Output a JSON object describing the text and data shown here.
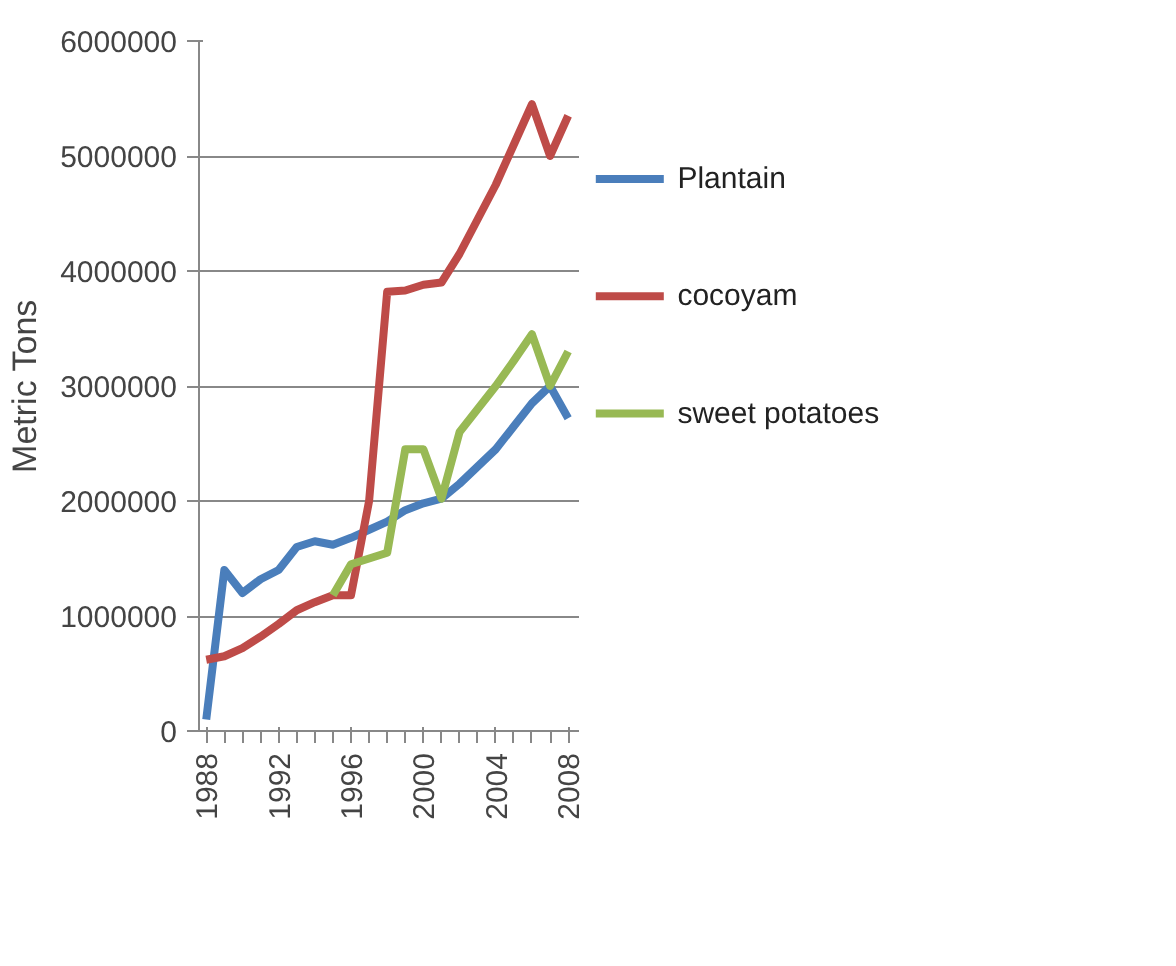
{
  "chart_data": {
    "type": "line",
    "ylabel": "Metric Tons",
    "x": [
      1988,
      1989,
      1990,
      1991,
      1992,
      1993,
      1994,
      1995,
      1996,
      1997,
      1998,
      1999,
      2000,
      2001,
      2002,
      2003,
      2004,
      2005,
      2006,
      2007,
      2008
    ],
    "xlim": [
      1987.6,
      2008.6
    ],
    "xticks": [
      1988,
      1992,
      1996,
      2000,
      2004,
      2008
    ],
    "ylim": [
      0,
      6000000
    ],
    "yticks": [
      0,
      1000000,
      2000000,
      3000000,
      4000000,
      5000000,
      6000000
    ],
    "grid": "y",
    "legend": "right",
    "line_style": "solid",
    "series": [
      {
        "name": "Plantain",
        "color": "#4a7ebb",
        "values": [
          100000,
          1400000,
          1200000,
          1320000,
          1400000,
          1600000,
          1650000,
          1620000,
          1680000,
          1750000,
          1820000,
          1920000,
          1980000,
          2020000,
          2150000,
          2300000,
          2450000,
          2650000,
          2850000,
          3000000,
          2720000
        ]
      },
      {
        "name": "cocoyam",
        "color": "#be4b48",
        "values": [
          620000,
          650000,
          720000,
          820000,
          930000,
          1050000,
          1120000,
          1180000,
          1180000,
          2000000,
          3820000,
          3830000,
          3880000,
          3900000,
          4150000,
          4450000,
          4750000,
          5100000,
          5450000,
          5000000,
          5350000
        ]
      },
      {
        "name": "sweet potatoes",
        "color": "#98b954",
        "values": [
          null,
          null,
          null,
          null,
          null,
          null,
          null,
          1180000,
          1450000,
          1500000,
          1550000,
          2450000,
          2450000,
          2020000,
          2600000,
          2800000,
          3000000,
          3220000,
          3450000,
          3000000,
          3300000
        ]
      }
    ]
  }
}
